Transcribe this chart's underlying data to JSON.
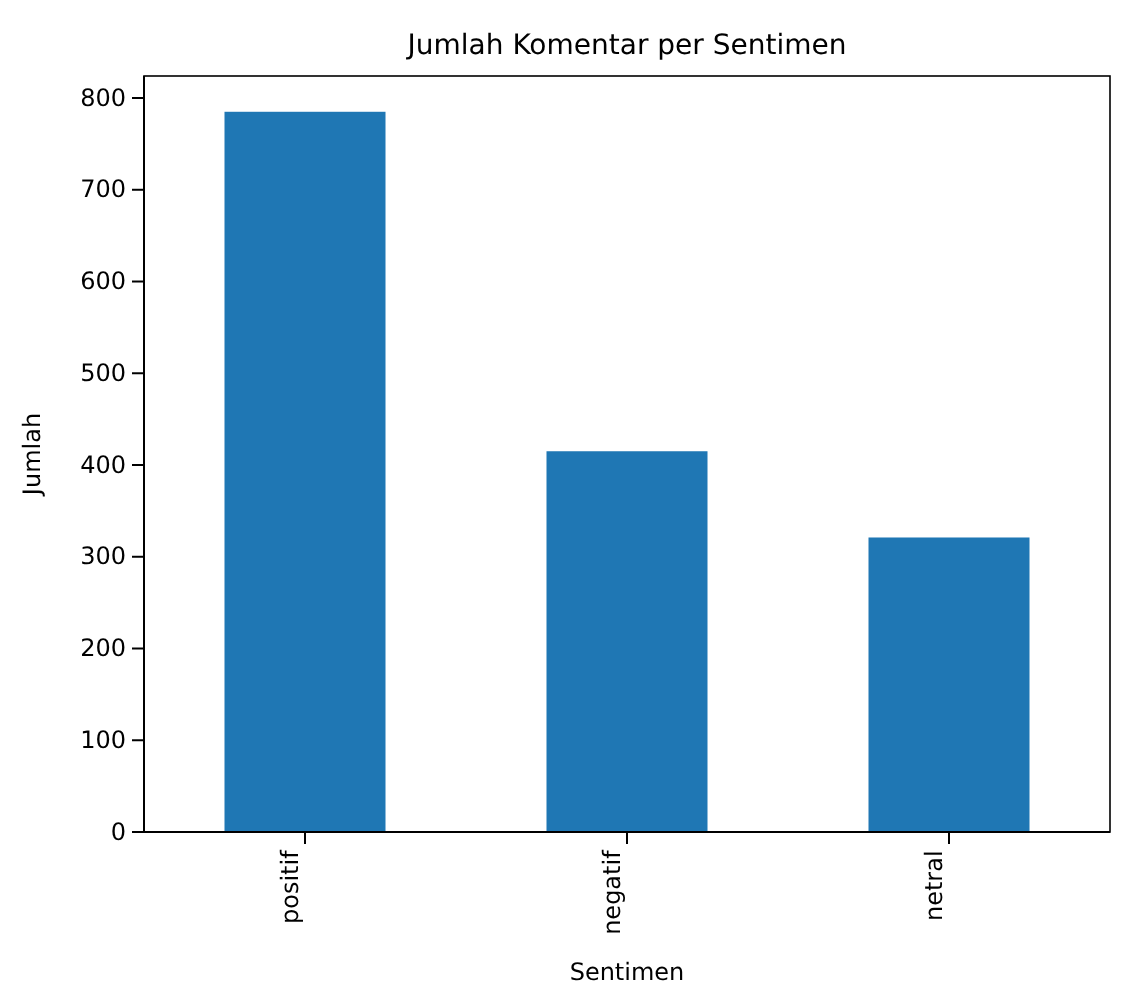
{
  "chart_data": {
    "type": "bar",
    "title": "Jumlah Komentar per Sentimen",
    "xlabel": "Sentimen",
    "ylabel": "Jumlah",
    "categories": [
      "positif",
      "negatif",
      "netral"
    ],
    "values": [
      785,
      415,
      321
    ],
    "color": "#1f77b4",
    "ylim": [
      0,
      824
    ],
    "yticks": [
      0,
      100,
      200,
      300,
      400,
      500,
      600,
      700,
      800
    ],
    "grid": false
  }
}
